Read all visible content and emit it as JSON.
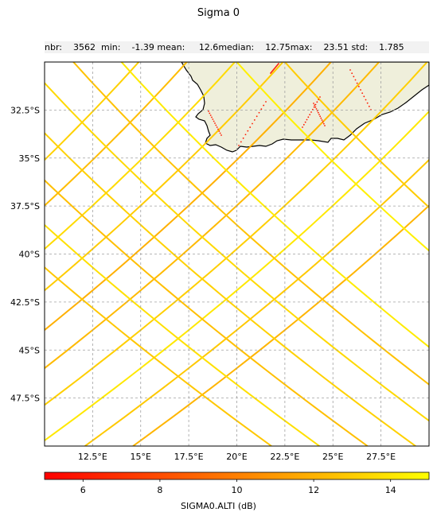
{
  "title": "Sigma 0",
  "stats": {
    "nbr_label": "nbr:",
    "nbr": "3562",
    "min_label": "min:",
    "min": "-1.39",
    "mean_label": "mean:",
    "mean": "12.6",
    "median_label": "median:",
    "median": "12.75",
    "max_label": "max:",
    "max": "23.51",
    "std_label": "std:",
    "std": "1.785"
  },
  "map": {
    "lon_range": [
      10,
      30
    ],
    "lat_range": [
      -50,
      -30
    ],
    "lon_ticks": [
      "12.5°E",
      "15°E",
      "17.5°E",
      "20°E",
      "22.5°E",
      "25°E",
      "27.5°E"
    ],
    "lon_tick_values": [
      12.5,
      15,
      17.5,
      20,
      22.5,
      25,
      27.5
    ],
    "lat_ticks": [
      "32.5°S",
      "35°S",
      "37.5°S",
      "40°S",
      "42.5°S",
      "45°S",
      "47.5°S"
    ],
    "lat_tick_values": [
      -32.5,
      -35,
      -37.5,
      -40,
      -42.5,
      -45,
      -47.5
    ],
    "land_color": "#efefdb",
    "grid": true
  },
  "colorbar": {
    "label": "SIGMA0.ALTI (dB)",
    "range": [
      5,
      15
    ],
    "ticks": [
      "6",
      "8",
      "10",
      "12",
      "14"
    ],
    "tick_values": [
      6,
      8,
      10,
      12,
      14
    ],
    "colormap": "autumn (red → yellow)"
  },
  "tracks": [
    {
      "kind": "ascending",
      "lon0": 14.9,
      "value": 13.2
    },
    {
      "kind": "ascending",
      "lon0": 17.4,
      "value": 12.4
    },
    {
      "kind": "ascending",
      "lon0": 19.9,
      "value": 13.6
    },
    {
      "kind": "ascending",
      "lon0": 22.4,
      "value": 13.0
    },
    {
      "kind": "ascending",
      "lon0": 24.9,
      "value": 11.9
    },
    {
      "kind": "ascending",
      "lon0": 27.4,
      "value": 12.3
    },
    {
      "kind": "ascending",
      "lon0": 29.9,
      "value": 13.1
    },
    {
      "kind": "ascending",
      "lon0": 32.4,
      "value": 14.1
    },
    {
      "kind": "ascending",
      "lon0": 34.9,
      "value": 12.9
    },
    {
      "kind": "ascending",
      "lon0": 37.4,
      "value": 12.1
    },
    {
      "kind": "descending",
      "lon0": 14.0,
      "value": 14.2
    },
    {
      "kind": "descending",
      "lon0": 11.5,
      "value": 12.6
    },
    {
      "kind": "descending",
      "lon0": 9.0,
      "value": 13.5
    },
    {
      "kind": "descending",
      "lon0": 6.5,
      "value": 13.2
    },
    {
      "kind": "descending",
      "lon0": 4.0,
      "value": 12.5
    },
    {
      "kind": "descending",
      "lon0": 1.5,
      "value": 13.8
    },
    {
      "kind": "descending",
      "lon0": -1.0,
      "value": 12.8
    },
    {
      "kind": "descending",
      "lon0": 20.0,
      "value": 14.4
    },
    {
      "kind": "descending",
      "lon0": 22.5,
      "value": 13.0
    }
  ],
  "land_points_value": 6.0
}
